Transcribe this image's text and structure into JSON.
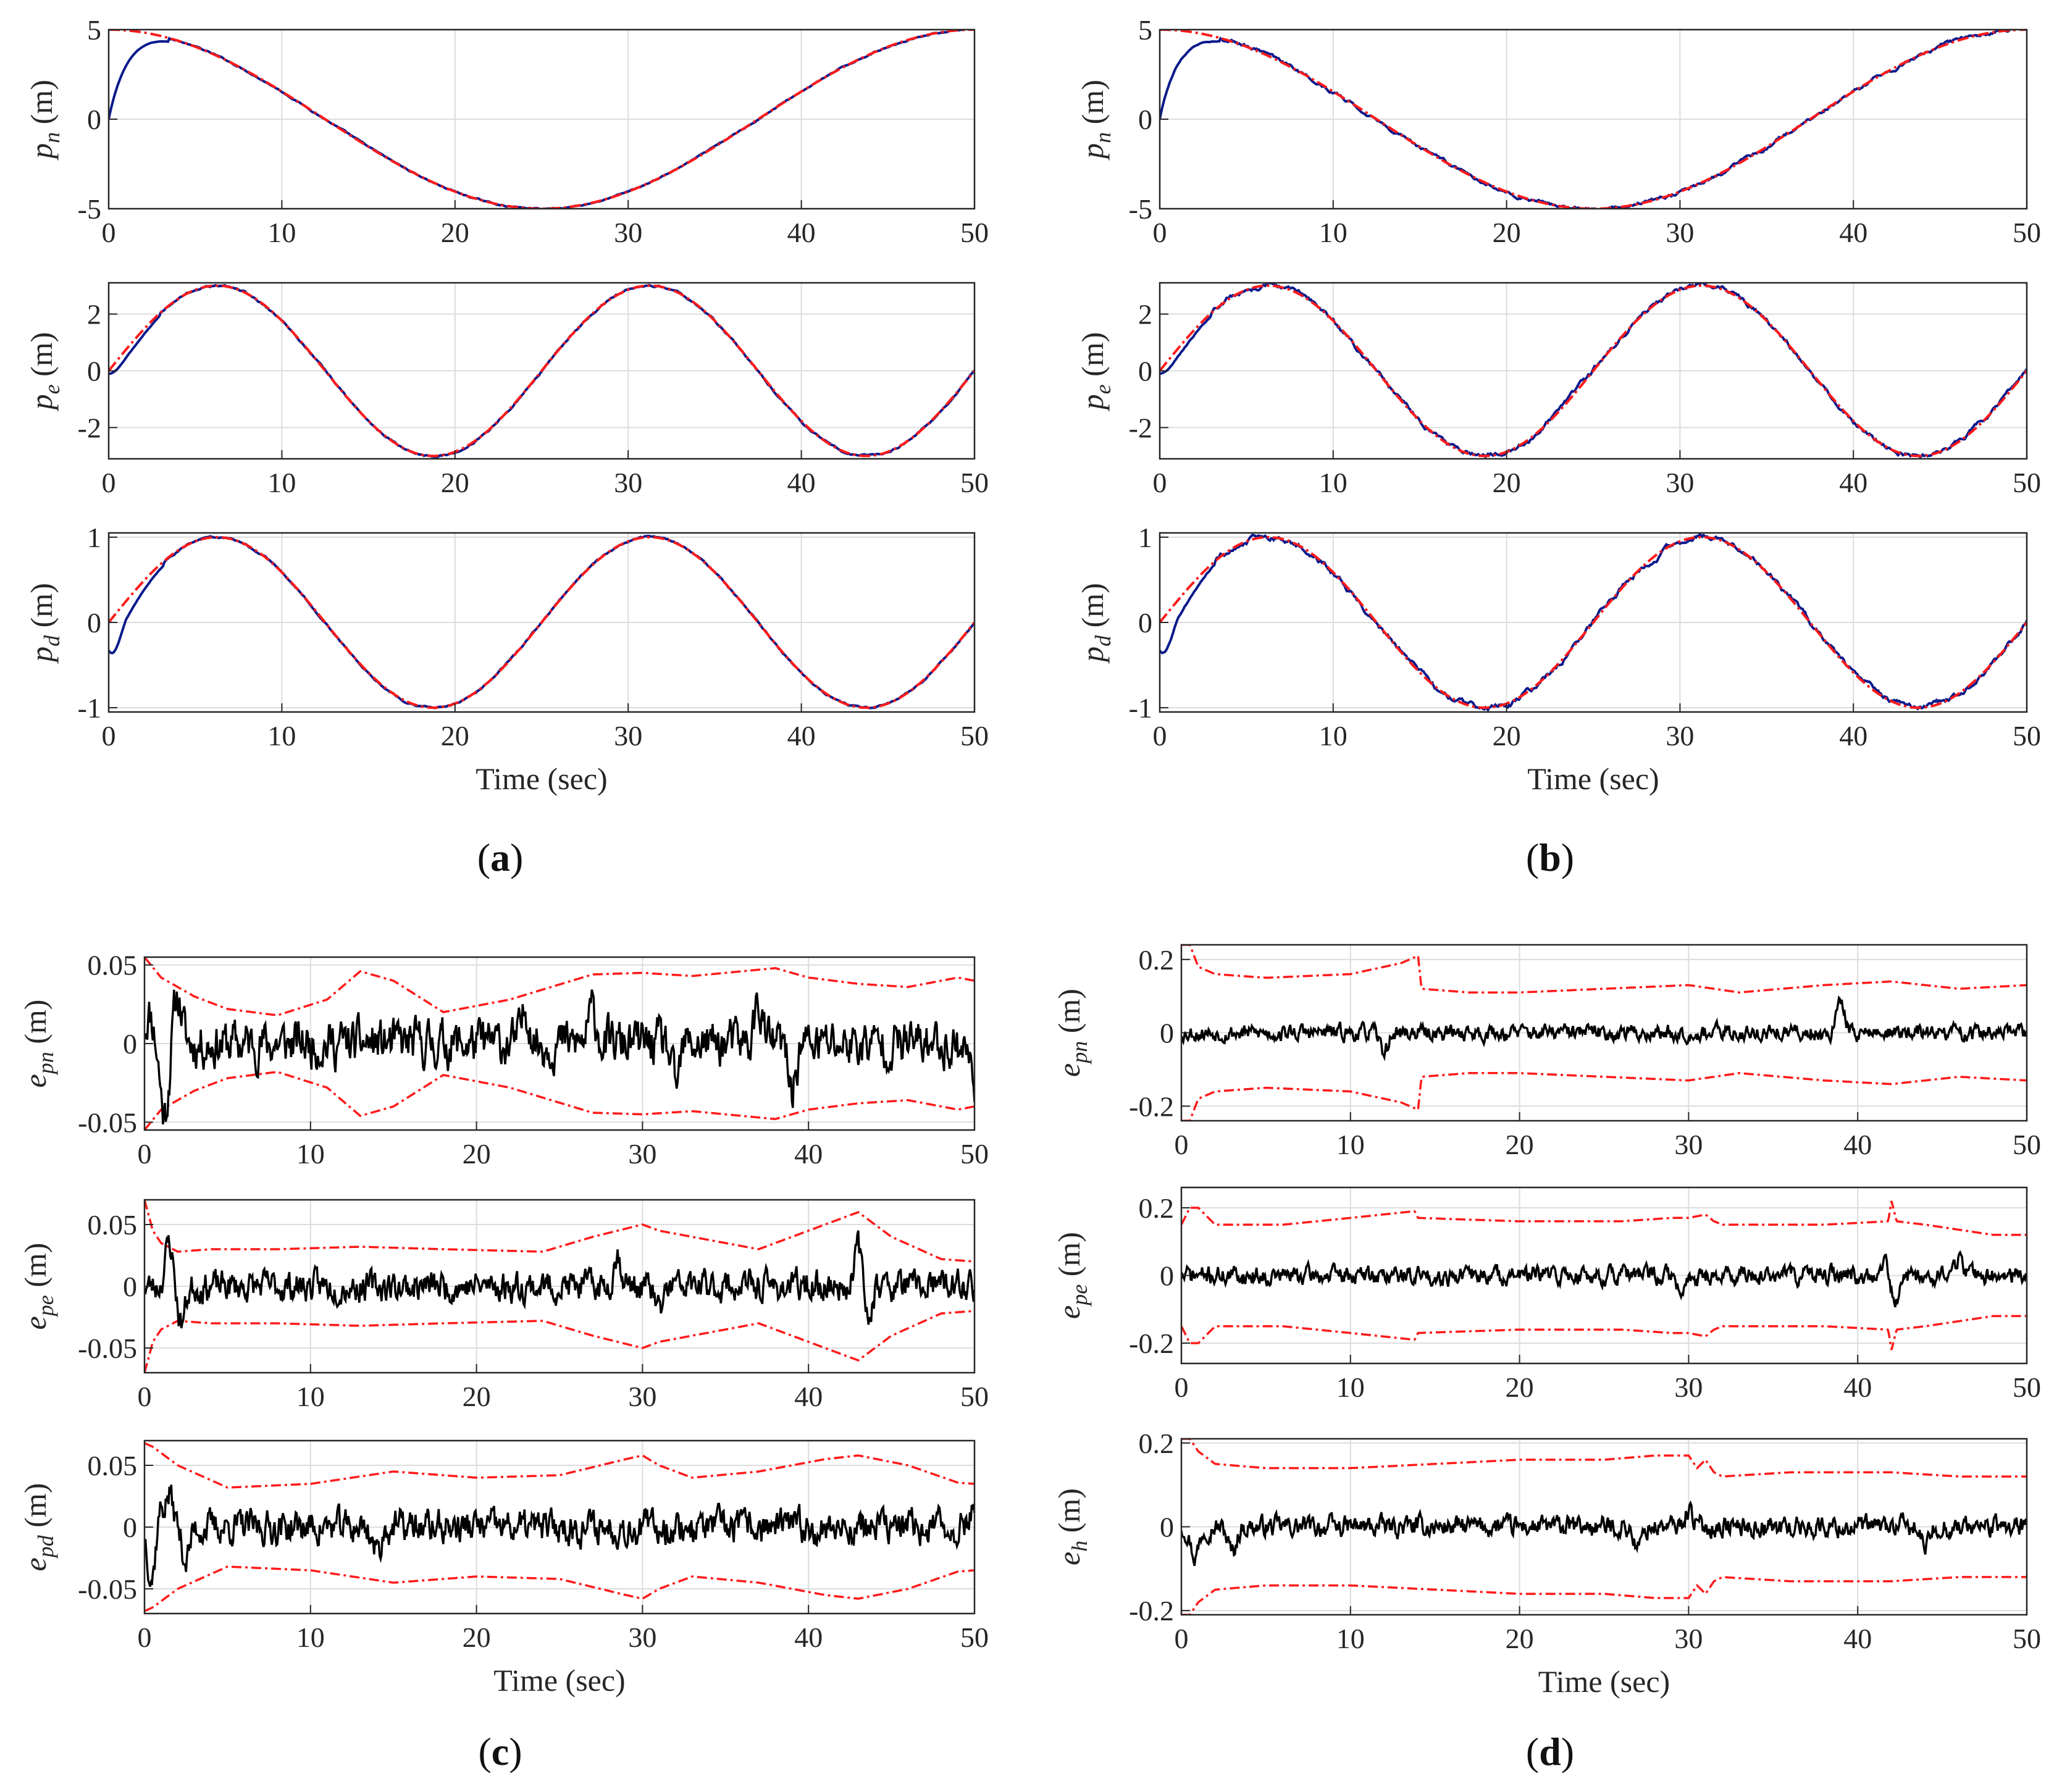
{
  "figure": {
    "panel_labels": [
      "a",
      "b",
      "c",
      "d"
    ],
    "xlabel": "Time (sec)",
    "colors": {
      "estimate": "#0a1a8c",
      "reference": "#ff1a1a",
      "error": "#000000",
      "bound": "#ff1a1a",
      "grid": "#dcdcdc"
    }
  },
  "chart_data": [
    {
      "id": "a1",
      "panel": "a",
      "type": "line",
      "ylabel": {
        "base": "p",
        "sub": "n",
        "unit": "(m)"
      },
      "xlim": [
        0,
        50
      ],
      "ylim": [
        -5,
        5
      ],
      "xticks": [
        0,
        10,
        20,
        30,
        40,
        50
      ],
      "yticks": [
        -5,
        0,
        5
      ],
      "ytick_labels": [
        "-5",
        "0",
        "5"
      ],
      "grid": true,
      "series": [
        {
          "name": "reference",
          "style": "dashdot",
          "color": "#ff1a1a",
          "func": "cos",
          "amp": 5,
          "period": 50,
          "offset": 0,
          "init_transient": false
        },
        {
          "name": "estimate",
          "style": "solid",
          "color": "#0a1a8c",
          "func": "cos",
          "amp": 5,
          "period": 50,
          "offset": 0,
          "init_transient": true,
          "start": 0,
          "settle_time": 3.5,
          "noise": 0.02
        }
      ]
    },
    {
      "id": "a2",
      "panel": "a",
      "type": "line",
      "ylabel": {
        "base": "p",
        "sub": "e",
        "unit": "(m)"
      },
      "xlim": [
        0,
        50
      ],
      "ylim": [
        -3.1,
        3.1
      ],
      "xticks": [
        0,
        10,
        20,
        30,
        40,
        50
      ],
      "yticks": [
        -2,
        0,
        2
      ],
      "ytick_labels": [
        "-2",
        "0",
        "2"
      ],
      "grid": true,
      "series": [
        {
          "name": "reference",
          "style": "dashdot",
          "color": "#ff1a1a",
          "func": "sin",
          "amp": 3,
          "period": 25,
          "offset": 0,
          "init_transient": false
        },
        {
          "name": "estimate",
          "style": "solid",
          "color": "#0a1a8c",
          "func": "sin",
          "amp": 3,
          "period": 25,
          "offset": 0,
          "init_transient": true,
          "start": -0.1,
          "settle_time": 3.0,
          "noise": 0.02
        }
      ]
    },
    {
      "id": "a3",
      "panel": "a",
      "type": "line",
      "ylabel": {
        "base": "p",
        "sub": "d",
        "unit": "(m)"
      },
      "xlim": [
        0,
        50
      ],
      "ylim": [
        -1.05,
        1.05
      ],
      "xticks": [
        0,
        10,
        20,
        30,
        40,
        50
      ],
      "yticks": [
        -1,
        0,
        1
      ],
      "ytick_labels": [
        "-1",
        "0",
        "1"
      ],
      "grid": true,
      "series": [
        {
          "name": "reference",
          "style": "dashdot",
          "color": "#ff1a1a",
          "func": "sin",
          "amp": 1,
          "period": 25,
          "offset": 0,
          "init_transient": false
        },
        {
          "name": "estimate",
          "style": "solid",
          "color": "#0a1a8c",
          "func": "sin",
          "amp": 1,
          "period": 25,
          "offset": 0,
          "init_transient": true,
          "start": -0.33,
          "settle_time": 3.2,
          "noise": 0.006
        }
      ],
      "xlabel": "Time (sec)"
    },
    {
      "id": "b1",
      "panel": "b",
      "type": "line",
      "ylabel": {
        "base": "p",
        "sub": "n",
        "unit": "(m)"
      },
      "xlim": [
        0,
        50
      ],
      "ylim": [
        -5,
        5
      ],
      "xticks": [
        0,
        10,
        20,
        30,
        40,
        50
      ],
      "yticks": [
        -5,
        0,
        5
      ],
      "ytick_labels": [
        "-5",
        "0",
        "5"
      ],
      "grid": true,
      "series": [
        {
          "name": "reference",
          "style": "dashdot",
          "color": "#ff1a1a",
          "func": "cos",
          "amp": 5,
          "period": 50,
          "offset": 0,
          "init_transient": false
        },
        {
          "name": "estimate",
          "style": "solid",
          "color": "#0a1a8c",
          "func": "cos",
          "amp": 5,
          "period": 50,
          "offset": 0,
          "init_transient": true,
          "start": 0,
          "settle_time": 3.5,
          "noise": 0.06
        }
      ]
    },
    {
      "id": "b2",
      "panel": "b",
      "type": "line",
      "ylabel": {
        "base": "p",
        "sub": "e",
        "unit": "(m)"
      },
      "xlim": [
        0,
        50
      ],
      "ylim": [
        -3.1,
        3.1
      ],
      "xticks": [
        0,
        10,
        20,
        30,
        40,
        50
      ],
      "yticks": [
        -2,
        0,
        2
      ],
      "ytick_labels": [
        "-2",
        "0",
        "2"
      ],
      "grid": true,
      "series": [
        {
          "name": "reference",
          "style": "dashdot",
          "color": "#ff1a1a",
          "func": "sin",
          "amp": 3,
          "period": 25,
          "offset": 0,
          "init_transient": false
        },
        {
          "name": "estimate",
          "style": "solid",
          "color": "#0a1a8c",
          "func": "sin",
          "amp": 3,
          "period": 25,
          "offset": 0,
          "init_transient": true,
          "start": -0.1,
          "settle_time": 3.0,
          "noise": 0.05
        }
      ]
    },
    {
      "id": "b3",
      "panel": "b",
      "type": "line",
      "ylabel": {
        "base": "p",
        "sub": "d",
        "unit": "(m)"
      },
      "xlim": [
        0,
        50
      ],
      "ylim": [
        -1.05,
        1.05
      ],
      "xticks": [
        0,
        10,
        20,
        30,
        40,
        50
      ],
      "yticks": [
        -1,
        0,
        1
      ],
      "ytick_labels": [
        "-1",
        "0",
        "1"
      ],
      "grid": true,
      "series": [
        {
          "name": "reference",
          "style": "dashdot",
          "color": "#ff1a1a",
          "func": "sin",
          "amp": 1,
          "period": 25,
          "offset": 0,
          "init_transient": false
        },
        {
          "name": "estimate",
          "style": "solid",
          "color": "#0a1a8c",
          "func": "sin",
          "amp": 1,
          "period": 25,
          "offset": 0,
          "init_transient": true,
          "start": -0.33,
          "settle_time": 3.2,
          "noise": 0.02
        }
      ],
      "xlabel": "Time (sec)"
    },
    {
      "id": "c1",
      "panel": "c",
      "type": "line",
      "ylabel": {
        "base": "e",
        "sub": "pn",
        "unit": "(m)"
      },
      "xlim": [
        0,
        50
      ],
      "ylim": [
        -0.055,
        0.055
      ],
      "xticks": [
        0,
        10,
        20,
        30,
        40,
        50
      ],
      "yticks": [
        -0.05,
        0,
        0.05
      ],
      "ytick_labels": [
        "-0.05",
        "0",
        "0.05"
      ],
      "grid": true,
      "bound": {
        "t": [
          0,
          1,
          3,
          5,
          8,
          11,
          13,
          15,
          18,
          22,
          27,
          30,
          33,
          36,
          38,
          40,
          43,
          46,
          49,
          50
        ],
        "v": [
          0.055,
          0.042,
          0.03,
          0.022,
          0.018,
          0.028,
          0.046,
          0.04,
          0.02,
          0.028,
          0.044,
          0.045,
          0.043,
          0.046,
          0.048,
          0.042,
          0.038,
          0.036,
          0.042,
          0.04
        ]
      },
      "error": {
        "amp": 0.012,
        "seed": 11,
        "spikes": [
          [
            0.3,
            0.02
          ],
          [
            1.2,
            -0.045
          ],
          [
            2,
            0.03
          ],
          [
            23,
            0.022
          ],
          [
            27,
            0.02
          ],
          [
            32,
            -0.028
          ],
          [
            37,
            0.025
          ],
          [
            39,
            -0.028
          ],
          [
            50,
            -0.024
          ]
        ]
      }
    },
    {
      "id": "c2",
      "panel": "c",
      "type": "line",
      "ylabel": {
        "base": "e",
        "sub": "pe",
        "unit": "(m)"
      },
      "xlim": [
        0,
        50
      ],
      "ylim": [
        -0.07,
        0.07
      ],
      "xticks": [
        0,
        10,
        20,
        30,
        40,
        50
      ],
      "yticks": [
        -0.05,
        0,
        0.05
      ],
      "ytick_labels": [
        "-0.05",
        "0",
        "0.05"
      ],
      "grid": true,
      "bound": {
        "t": [
          0,
          0.5,
          1,
          2,
          4,
          8,
          13,
          18,
          24,
          27,
          30,
          31,
          33,
          37,
          40,
          42,
          43,
          45,
          48,
          50
        ],
        "v": [
          0.07,
          0.045,
          0.035,
          0.028,
          0.03,
          0.03,
          0.032,
          0.03,
          0.028,
          0.04,
          0.05,
          0.045,
          0.04,
          0.03,
          0.045,
          0.055,
          0.06,
          0.04,
          0.022,
          0.02
        ]
      },
      "error": {
        "amp": 0.01,
        "seed": 23,
        "spikes": [
          [
            1.5,
            0.035
          ],
          [
            2.2,
            -0.03
          ],
          [
            28.5,
            0.025
          ],
          [
            31,
            -0.02
          ],
          [
            43,
            0.035
          ],
          [
            43.5,
            -0.025
          ]
        ]
      }
    },
    {
      "id": "c3",
      "panel": "c",
      "type": "line",
      "ylabel": {
        "base": "e",
        "sub": "pd",
        "unit": "(m)"
      },
      "xlim": [
        0,
        50
      ],
      "ylim": [
        -0.07,
        0.07
      ],
      "xticks": [
        0,
        10,
        20,
        30,
        40,
        50
      ],
      "yticks": [
        -0.05,
        0,
        0.05
      ],
      "ytick_labels": [
        "-0.05",
        "0",
        "0.05"
      ],
      "grid": true,
      "bound": {
        "t": [
          0,
          0.5,
          2,
          5,
          10,
          15,
          20,
          25,
          29,
          30,
          31,
          33,
          37,
          41,
          43,
          46,
          49,
          50
        ],
        "v": [
          0.068,
          0.065,
          0.05,
          0.032,
          0.035,
          0.045,
          0.04,
          0.042,
          0.055,
          0.058,
          0.05,
          0.04,
          0.045,
          0.055,
          0.058,
          0.05,
          0.036,
          0.035
        ]
      },
      "error": {
        "amp": 0.011,
        "seed": 37,
        "spikes": [
          [
            0.5,
            -0.05
          ],
          [
            0.8,
            0.025
          ],
          [
            1.5,
            0.025
          ],
          [
            2.5,
            -0.025
          ],
          [
            14,
            -0.02
          ],
          [
            50,
            0.02
          ]
        ]
      },
      "xlabel": "Time (sec)"
    },
    {
      "id": "d1",
      "panel": "d",
      "type": "line",
      "ylabel": {
        "base": "e",
        "sub": "pn",
        "unit": "(m)"
      },
      "xlim": [
        0,
        50
      ],
      "ylim": [
        -0.24,
        0.24
      ],
      "xticks": [
        0,
        10,
        20,
        30,
        40,
        50
      ],
      "yticks": [
        -0.2,
        0,
        0.2
      ],
      "ytick_labels": [
        "-0.2",
        "0",
        "0.2"
      ],
      "grid": true,
      "bound": {
        "t": [
          0,
          0.5,
          1,
          2,
          5,
          10,
          13,
          14,
          14.2,
          17,
          20,
          25,
          30,
          33,
          38,
          42,
          46,
          50
        ],
        "v": [
          0.24,
          0.24,
          0.18,
          0.16,
          0.15,
          0.16,
          0.19,
          0.21,
          0.12,
          0.11,
          0.11,
          0.12,
          0.13,
          0.11,
          0.13,
          0.14,
          0.12,
          0.13
        ]
      },
      "error": {
        "amp": 0.018,
        "seed": 53,
        "spikes": [
          [
            12,
            -0.05
          ],
          [
            39,
            0.08
          ]
        ]
      }
    },
    {
      "id": "d2",
      "panel": "d",
      "type": "line",
      "ylabel": {
        "base": "e",
        "sub": "pe",
        "unit": "(m)"
      },
      "xlim": [
        0,
        50
      ],
      "ylim": [
        -0.26,
        0.26
      ],
      "xticks": [
        0,
        10,
        20,
        30,
        40,
        50
      ],
      "yticks": [
        -0.2,
        0,
        0.2
      ],
      "ytick_labels": [
        "-0.2",
        "0",
        "0.2"
      ],
      "grid": true,
      "bound": {
        "t": [
          0,
          0.5,
          1,
          2,
          6,
          10,
          13.8,
          14,
          20,
          26,
          29,
          30,
          31,
          31.5,
          32,
          38,
          41.8,
          42,
          42.3,
          44,
          48,
          50
        ],
        "v": [
          0.15,
          0.2,
          0.2,
          0.15,
          0.15,
          0.17,
          0.19,
          0.17,
          0.16,
          0.16,
          0.17,
          0.17,
          0.18,
          0.16,
          0.15,
          0.15,
          0.16,
          0.22,
          0.16,
          0.15,
          0.12,
          0.12
        ]
      },
      "error": {
        "amp": 0.022,
        "seed": 71,
        "spikes": [
          [
            29.6,
            -0.06
          ],
          [
            41.5,
            0.05
          ],
          [
            42.3,
            -0.08
          ],
          [
            46,
            0.05
          ]
        ]
      }
    },
    {
      "id": "d3",
      "panel": "d",
      "type": "line",
      "ylabel": {
        "base": "e",
        "sub": "h",
        "unit": "(m)"
      },
      "xlim": [
        0,
        50
      ],
      "ylim": [
        -0.21,
        0.21
      ],
      "xticks": [
        0,
        10,
        20,
        30,
        40,
        50
      ],
      "yticks": [
        -0.2,
        0,
        0.2
      ],
      "ytick_labels": [
        "-0.2",
        "0",
        "0.2"
      ],
      "grid": true,
      "bound": {
        "t": [
          0,
          0.5,
          1,
          2,
          5,
          10,
          15,
          20,
          25,
          28,
          30,
          30.5,
          31,
          31.5,
          32,
          36,
          42,
          46,
          50
        ],
        "v": [
          0.21,
          0.21,
          0.18,
          0.15,
          0.14,
          0.14,
          0.15,
          0.16,
          0.16,
          0.17,
          0.17,
          0.14,
          0.16,
          0.13,
          0.12,
          0.13,
          0.13,
          0.12,
          0.12
        ]
      },
      "error": {
        "amp": 0.02,
        "seed": 97,
        "spikes": [
          [
            0.8,
            -0.07
          ],
          [
            3,
            -0.06
          ],
          [
            27,
            -0.05
          ],
          [
            30,
            0.04
          ],
          [
            44,
            -0.05
          ]
        ]
      },
      "xlabel": "Time (sec)"
    }
  ]
}
